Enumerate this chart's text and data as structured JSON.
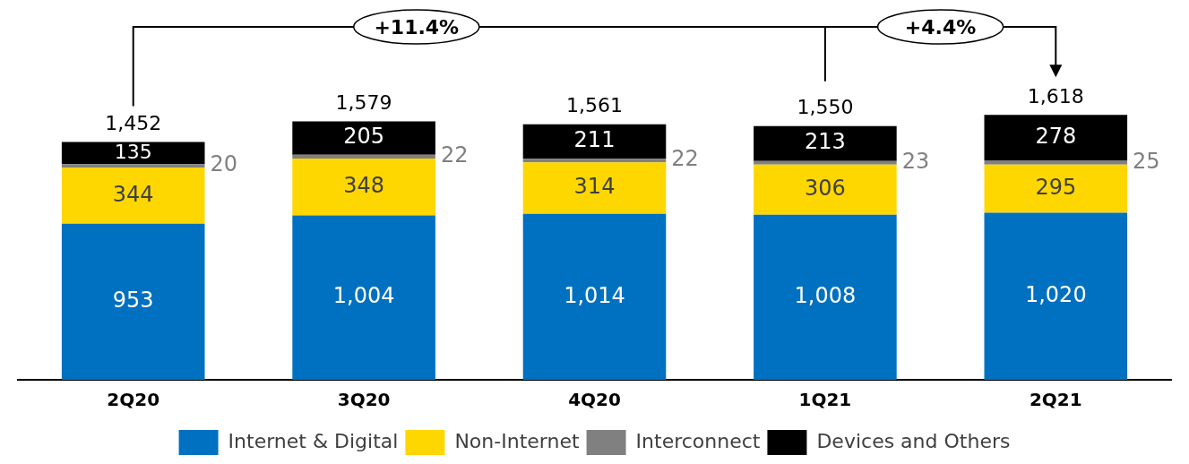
{
  "chart_data": {
    "type": "bar",
    "stacked": true,
    "categories": [
      "2Q20",
      "3Q20",
      "4Q20",
      "1Q21",
      "2Q21"
    ],
    "series": [
      {
        "name": "Internet & Digital",
        "color": "#0070c0",
        "values": [
          953,
          1004,
          1014,
          1008,
          1020
        ],
        "value_labels": [
          "953",
          "1,004",
          "1,014",
          "1,008",
          "1,020"
        ]
      },
      {
        "name": "Non-Internet",
        "color": "#ffd700",
        "values": [
          344,
          348,
          314,
          306,
          295
        ],
        "value_labels": [
          "344",
          "348",
          "314",
          "306",
          "295"
        ]
      },
      {
        "name": "Interconnect",
        "color": "#808080",
        "values": [
          20,
          22,
          22,
          23,
          25
        ],
        "value_labels": [
          "20",
          "22",
          "22",
          "23",
          "25"
        ]
      },
      {
        "name": "Devices and Others",
        "color": "#000000",
        "values": [
          135,
          205,
          211,
          213,
          278
        ],
        "value_labels": [
          "135",
          "205",
          "211",
          "213",
          "278"
        ]
      }
    ],
    "tick_labels": "x",
    "totals": [
      "1,452",
      "1,579",
      "1,561",
      "1,550",
      "1,618"
    ],
    "annotations": [
      "+11.4%",
      "+4.4%"
    ],
    "legend": "bottom",
    "grid": false
  }
}
